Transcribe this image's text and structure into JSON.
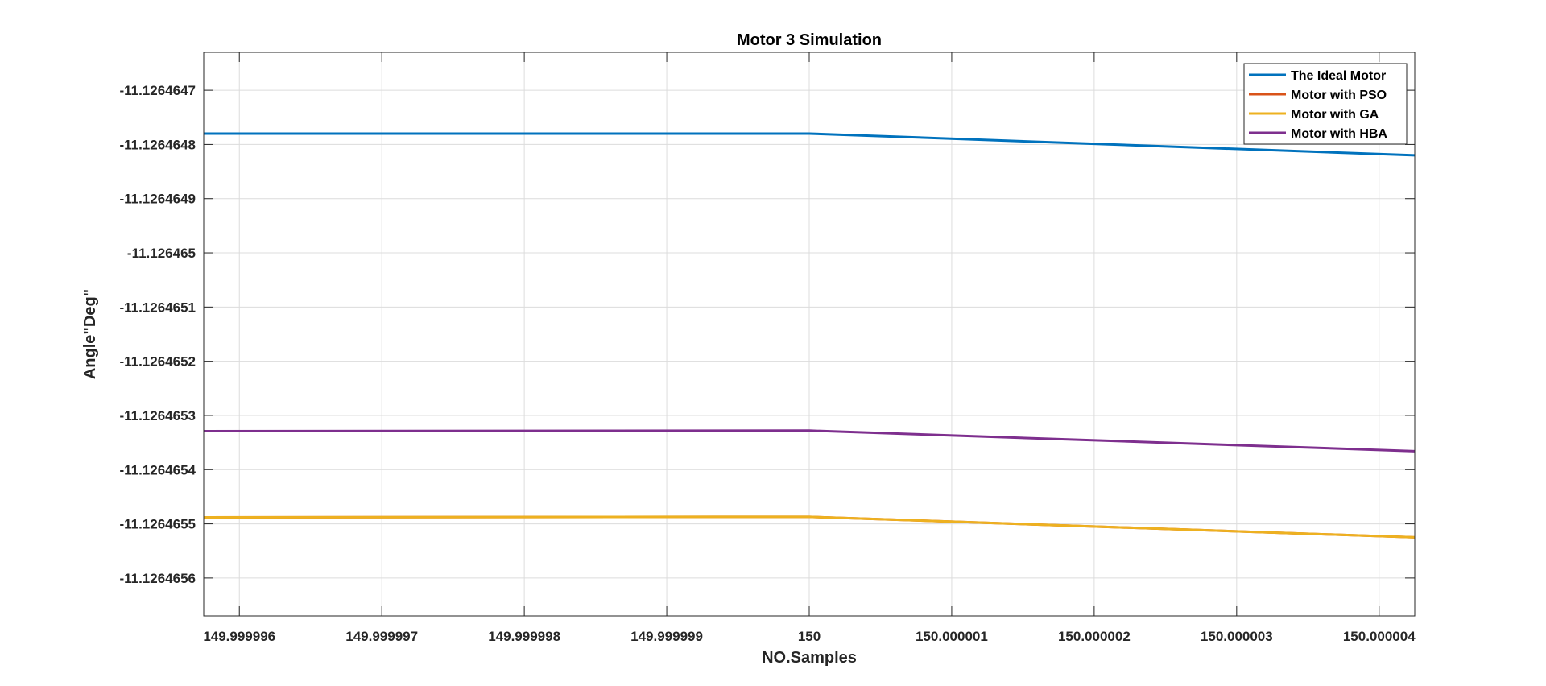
{
  "chart_data": {
    "type": "line",
    "title": "Motor 3 Simulation",
    "xlabel": "NO.Samples",
    "ylabel": "Angle\"Deg\"",
    "xlim": [
      149.99999575,
      150.00000425
    ],
    "ylim": [
      -11.12646567,
      -11.12646463
    ],
    "xticks": [
      149.999996,
      149.999997,
      149.999998,
      149.999999,
      150,
      150.000001,
      150.000002,
      150.000003,
      150.000004
    ],
    "xtick_labels": [
      "149.999996",
      "149.999997",
      "149.999998",
      "149.999999",
      "150",
      "150.000001",
      "150.000002",
      "150.000003",
      "150.000004"
    ],
    "yticks": [
      -11.1264647,
      -11.1264648,
      -11.1264649,
      -11.126465,
      -11.1264651,
      -11.1264652,
      -11.1264653,
      -11.1264654,
      -11.1264655,
      -11.1264656
    ],
    "ytick_labels": [
      "-11.1264647",
      "-11.1264648",
      "-11.1264649",
      "-11.126465",
      "-11.1264651",
      "-11.1264652",
      "-11.1264653",
      "-11.1264654",
      "-11.1264655",
      "-11.1264656"
    ],
    "grid": true,
    "legend_position": "top-right",
    "series": [
      {
        "name": "The Ideal Motor",
        "color": "#0072BD",
        "x": [
          149.99999575,
          150,
          150.00000425
        ],
        "y": [
          -11.12646478,
          -11.12646478,
          -11.12646482
        ]
      },
      {
        "name": "Motor with PSO",
        "color": "#D95319",
        "x": [
          149.99999575,
          150,
          150.00000425
        ],
        "y": [
          -11.126465488,
          -11.126465487,
          -11.126465525
        ]
      },
      {
        "name": "Motor with GA",
        "color": "#EDB120",
        "x": [
          149.99999575,
          150,
          150.00000425
        ],
        "y": [
          -11.126465488,
          -11.126465487,
          -11.126465525
        ]
      },
      {
        "name": "Motor with HBA",
        "color": "#7E2F8E",
        "x": [
          149.99999575,
          150,
          150.00000425
        ],
        "y": [
          -11.126465329,
          -11.126465328,
          -11.126465366
        ]
      }
    ]
  }
}
